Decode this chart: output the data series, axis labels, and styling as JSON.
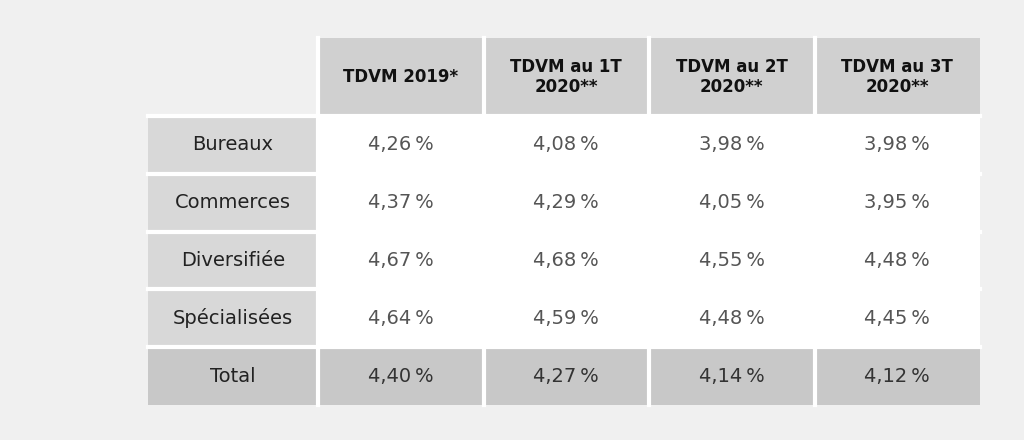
{
  "col_headers": [
    "TDVM 2019*",
    "TDVM au 1T\n2020**",
    "TDVM au 2T\n2020**",
    "TDVM au 3T\n2020**"
  ],
  "row_labels": [
    "Bureaux",
    "Commerces",
    "Diversifiée",
    "Spécialisées",
    "Total"
  ],
  "data": [
    [
      "4,26 %",
      "4,08 %",
      "3,98 %",
      "3,98 %"
    ],
    [
      "4,37 %",
      "4,29 %",
      "4,05 %",
      "3,95 %"
    ],
    [
      "4,67 %",
      "4,68 %",
      "4,55 %",
      "4,48 %"
    ],
    [
      "4,64 %",
      "4,59 %",
      "4,48 %",
      "4,45 %"
    ],
    [
      "4,40 %",
      "4,27 %",
      "4,14 %",
      "4,12 %"
    ]
  ],
  "bg_page": "#f0f0f0",
  "bg_header": "#d0d0d0",
  "bg_row_label": "#d8d8d8",
  "bg_data_white": "#ffffff",
  "bg_total_row": "#c8c8c8",
  "bg_row_label_top": "#f0f0f0",
  "text_color_header": "#111111",
  "text_color_label": "#222222",
  "text_color_data": "#555555",
  "text_color_total": "#333333",
  "header_fontsize": 12,
  "label_fontsize": 14,
  "data_fontsize": 14,
  "sep_color": "#ffffff",
  "sep_linewidth": 3
}
